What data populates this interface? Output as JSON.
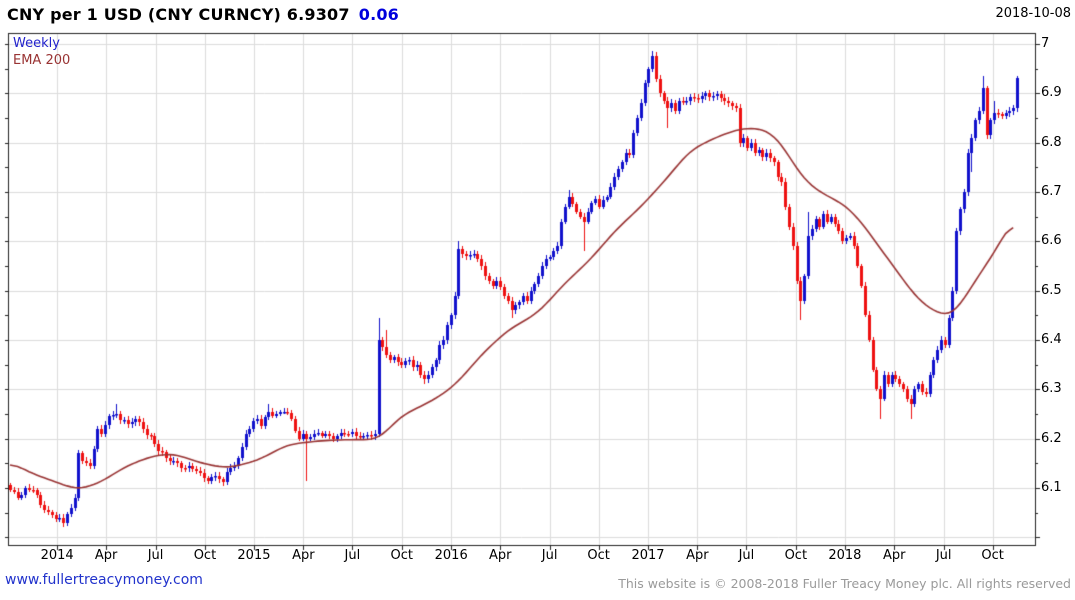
{
  "header": {
    "title": "CNY per 1 USD (CNY CURNCY) 6.9307",
    "change": "0.06",
    "date": "2018-10-08"
  },
  "legend": {
    "timeframe": "Weekly",
    "overlay": "EMA 200"
  },
  "footer": {
    "site": "www.fullertreacymoney.com",
    "copyright": "This website is © 2008-2018 Fuller Treacy Money plc. All rights reserved"
  },
  "chart_data": {
    "type": "candlestick",
    "title": "CNY per 1 USD (CNY CURNCY)",
    "timeframe": "weekly",
    "last_price": 6.9307,
    "change": 0.06,
    "as_of_date": "2018-10-08",
    "overlay": "EMA 200",
    "grid": true,
    "y_axis_side": "right",
    "ylim": [
      5.98,
      7.02
    ],
    "weeks_total": 266,
    "colors": {
      "up_candle": "#1111cc",
      "down_candle": "#ee1111",
      "ema_line": "#993333",
      "grid_line": "#dcdcdc",
      "axis_line": "#222222",
      "accent_blue": "#0000dd",
      "link_blue": "#2233cc",
      "muted_gray": "#9a9a9a"
    },
    "y_ticks": [
      {
        "label": "7",
        "value": 7.0
      },
      {
        "label": "6.9",
        "value": 6.9
      },
      {
        "label": "6.8",
        "value": 6.8
      },
      {
        "label": "6.7",
        "value": 6.7
      },
      {
        "label": "6.6",
        "value": 6.6
      },
      {
        "label": "6.5",
        "value": 6.5
      },
      {
        "label": "6.4",
        "value": 6.4
      },
      {
        "label": "6.3",
        "value": 6.3
      },
      {
        "label": "6.2",
        "value": 6.2
      },
      {
        "label": "6.1",
        "value": 6.1
      }
    ],
    "y_minor_tick_step": 0.05,
    "x_ticks": [
      {
        "label": "2014",
        "w": 12.4
      },
      {
        "label": "Apr",
        "w": 25.3
      },
      {
        "label": "Jul",
        "w": 38.3
      },
      {
        "label": "Oct",
        "w": 51.3
      },
      {
        "label": "2015",
        "w": 64.2
      },
      {
        "label": "Apr",
        "w": 77.2
      },
      {
        "label": "Jul",
        "w": 90.1
      },
      {
        "label": "Oct",
        "w": 103.1
      },
      {
        "label": "2016",
        "w": 116.1
      },
      {
        "label": "Apr",
        "w": 129.0
      },
      {
        "label": "Jul",
        "w": 142.0
      },
      {
        "label": "Oct",
        "w": 154.9
      },
      {
        "label": "2017",
        "w": 167.9
      },
      {
        "label": "Apr",
        "w": 180.9
      },
      {
        "label": "Jul",
        "w": 193.8
      },
      {
        "label": "Oct",
        "w": 206.8
      },
      {
        "label": "2018",
        "w": 219.7
      },
      {
        "label": "Apr",
        "w": 232.7
      },
      {
        "label": "Jul",
        "w": 245.7
      },
      {
        "label": "Oct",
        "w": 258.6
      }
    ],
    "series": {
      "close_keypoints": [
        [
          0,
          6.095
        ],
        [
          2,
          6.08
        ],
        [
          4,
          6.1
        ],
        [
          6,
          6.095
        ],
        [
          8,
          6.065
        ],
        [
          11,
          6.045
        ],
        [
          13,
          6.04
        ],
        [
          14,
          6.03,
          null,
          6.02
        ],
        [
          16,
          6.06
        ],
        [
          17,
          6.08
        ],
        [
          18,
          6.17
        ],
        [
          21,
          6.145
        ],
        [
          23,
          6.22
        ],
        [
          24,
          6.21
        ],
        [
          26,
          6.245
        ],
        [
          28,
          6.25,
          6.27
        ],
        [
          31,
          6.23
        ],
        [
          33,
          6.24
        ],
        [
          35,
          6.22
        ],
        [
          37,
          6.205
        ],
        [
          39,
          6.175
        ],
        [
          41,
          6.16
        ],
        [
          43,
          6.155
        ],
        [
          46,
          6.14
        ],
        [
          49,
          6.135
        ],
        [
          51,
          6.12
        ],
        [
          54,
          6.125
        ],
        [
          56,
          6.113,
          null,
          6.105
        ],
        [
          58,
          6.14
        ],
        [
          60,
          6.16
        ],
        [
          62,
          6.21
        ],
        [
          63,
          6.22
        ],
        [
          65,
          6.24
        ],
        [
          66,
          6.225
        ],
        [
          68,
          6.255,
          6.27
        ],
        [
          70,
          6.25
        ],
        [
          72,
          6.255
        ],
        [
          74,
          6.24
        ],
        [
          76,
          6.2
        ],
        [
          77,
          6.21
        ],
        [
          78,
          6.2,
          null,
          6.115
        ],
        [
          80,
          6.21
        ],
        [
          84,
          6.205
        ],
        [
          88,
          6.21
        ],
        [
          92,
          6.205
        ],
        [
          96,
          6.21
        ],
        [
          97,
          6.4,
          6.445
        ],
        [
          98,
          6.385
        ],
        [
          99,
          6.37,
          6.42
        ],
        [
          100,
          6.36
        ],
        [
          101,
          6.365
        ],
        [
          102,
          6.355
        ],
        [
          103,
          6.35
        ],
        [
          105,
          6.36
        ],
        [
          106,
          6.345
        ],
        [
          107,
          6.35
        ],
        [
          108,
          6.33
        ],
        [
          109,
          6.32,
          null,
          6.31
        ],
        [
          110,
          6.33
        ],
        [
          111,
          6.345
        ],
        [
          112,
          6.36
        ],
        [
          113,
          6.39
        ],
        [
          114,
          6.4
        ],
        [
          115,
          6.43
        ],
        [
          116,
          6.45
        ],
        [
          117,
          6.49
        ],
        [
          118,
          6.585,
          6.6
        ],
        [
          119,
          6.575
        ],
        [
          120,
          6.57
        ],
        [
          122,
          6.575
        ],
        [
          123,
          6.565
        ],
        [
          124,
          6.55
        ],
        [
          126,
          6.52
        ],
        [
          127,
          6.51
        ],
        [
          128,
          6.52
        ],
        [
          130,
          6.49
        ],
        [
          131,
          6.48
        ],
        [
          132,
          6.46,
          null,
          6.445
        ],
        [
          133,
          6.47
        ],
        [
          135,
          6.49
        ],
        [
          136,
          6.48
        ],
        [
          137,
          6.5
        ],
        [
          139,
          6.53
        ],
        [
          140,
          6.55
        ],
        [
          141,
          6.565
        ],
        [
          143,
          6.58
        ],
        [
          144,
          6.59
        ],
        [
          145,
          6.64
        ],
        [
          146,
          6.67
        ],
        [
          147,
          6.69,
          6.705
        ],
        [
          148,
          6.675
        ],
        [
          149,
          6.66
        ],
        [
          150,
          6.65
        ],
        [
          151,
          6.64,
          null,
          6.58
        ],
        [
          152,
          6.66
        ],
        [
          154,
          6.685
        ],
        [
          155,
          6.67
        ],
        [
          157,
          6.69
        ],
        [
          158,
          6.71
        ],
        [
          159,
          6.73
        ],
        [
          161,
          6.76
        ],
        [
          162,
          6.78
        ],
        [
          163,
          6.775
        ],
        [
          164,
          6.82
        ],
        [
          165,
          6.85
        ],
        [
          166,
          6.88
        ],
        [
          167,
          6.92
        ],
        [
          168,
          6.95
        ],
        [
          169,
          6.975,
          6.985
        ],
        [
          170,
          6.93
        ],
        [
          171,
          6.9
        ],
        [
          172,
          6.885
        ],
        [
          173,
          6.87,
          null,
          6.83
        ],
        [
          174,
          6.88
        ],
        [
          175,
          6.865
        ],
        [
          176,
          6.885
        ],
        [
          178,
          6.885
        ],
        [
          180,
          6.89
        ],
        [
          183,
          6.9
        ],
        [
          185,
          6.895
        ],
        [
          187,
          6.89
        ],
        [
          189,
          6.88
        ],
        [
          191,
          6.87
        ],
        [
          192,
          6.8
        ],
        [
          193,
          6.81
        ],
        [
          194,
          6.79
        ],
        [
          195,
          6.8
        ],
        [
          196,
          6.78
        ],
        [
          197,
          6.785
        ],
        [
          198,
          6.77
        ],
        [
          199,
          6.78
        ],
        [
          201,
          6.76
        ],
        [
          202,
          6.73
        ],
        [
          203,
          6.72
        ],
        [
          204,
          6.67
        ],
        [
          205,
          6.63
        ],
        [
          206,
          6.59
        ],
        [
          207,
          6.52
        ],
        [
          208,
          6.48,
          null,
          6.44
        ],
        [
          209,
          6.53
        ],
        [
          210,
          6.61,
          6.66
        ],
        [
          211,
          6.625
        ],
        [
          212,
          6.645
        ],
        [
          213,
          6.63
        ],
        [
          214,
          6.655
        ],
        [
          215,
          6.64
        ],
        [
          216,
          6.65
        ],
        [
          217,
          6.635
        ],
        [
          218,
          6.62
        ],
        [
          219,
          6.6
        ],
        [
          221,
          6.61
        ],
        [
          222,
          6.59
        ],
        [
          223,
          6.55
        ],
        [
          224,
          6.51
        ],
        [
          225,
          6.45
        ],
        [
          226,
          6.4
        ],
        [
          227,
          6.34
        ],
        [
          228,
          6.3
        ],
        [
          229,
          6.28,
          null,
          6.24
        ],
        [
          230,
          6.33
        ],
        [
          231,
          6.31
        ],
        [
          232,
          6.33
        ],
        [
          233,
          6.32
        ],
        [
          234,
          6.31
        ],
        [
          235,
          6.3
        ],
        [
          236,
          6.28
        ],
        [
          237,
          6.27,
          null,
          6.24
        ],
        [
          238,
          6.3
        ],
        [
          239,
          6.31
        ],
        [
          241,
          6.29
        ],
        [
          242,
          6.33
        ],
        [
          243,
          6.36
        ],
        [
          244,
          6.38
        ],
        [
          245,
          6.4
        ],
        [
          246,
          6.39
        ],
        [
          247,
          6.445
        ],
        [
          248,
          6.5
        ],
        [
          249,
          6.62
        ],
        [
          250,
          6.665
        ],
        [
          251,
          6.7
        ],
        [
          252,
          6.78
        ],
        [
          253,
          6.81,
          null,
          6.74
        ],
        [
          254,
          6.845
        ],
        [
          255,
          6.865
        ],
        [
          256,
          6.91,
          6.935
        ],
        [
          257,
          6.815
        ],
        [
          258,
          6.845
        ],
        [
          259,
          6.86,
          6.885
        ],
        [
          261,
          6.855
        ],
        [
          262,
          6.86
        ],
        [
          263,
          6.865
        ],
        [
          264,
          6.87
        ],
        [
          265,
          6.931
        ]
      ],
      "ema_keypoints": [
        [
          0,
          6.153
        ],
        [
          5,
          6.132
        ],
        [
          12,
          6.112
        ],
        [
          18,
          6.096
        ],
        [
          24,
          6.112
        ],
        [
          30,
          6.142
        ],
        [
          37,
          6.164
        ],
        [
          43,
          6.17
        ],
        [
          50,
          6.151
        ],
        [
          57,
          6.14
        ],
        [
          65,
          6.155
        ],
        [
          73,
          6.188
        ],
        [
          82,
          6.196
        ],
        [
          89,
          6.198
        ],
        [
          97,
          6.198
        ],
        [
          103,
          6.247
        ],
        [
          108,
          6.265
        ],
        [
          113,
          6.285
        ],
        [
          118,
          6.315
        ],
        [
          124,
          6.37
        ],
        [
          131,
          6.42
        ],
        [
          139,
          6.455
        ],
        [
          146,
          6.515
        ],
        [
          153,
          6.565
        ],
        [
          159,
          6.62
        ],
        [
          166,
          6.67
        ],
        [
          172,
          6.72
        ],
        [
          179,
          6.785
        ],
        [
          187,
          6.815
        ],
        [
          193,
          6.83
        ],
        [
          199,
          6.827
        ],
        [
          203,
          6.8
        ],
        [
          207,
          6.745
        ],
        [
          211,
          6.71
        ],
        [
          216,
          6.688
        ],
        [
          220,
          6.673
        ],
        [
          225,
          6.63
        ],
        [
          229,
          6.585
        ],
        [
          233,
          6.545
        ],
        [
          237,
          6.5
        ],
        [
          241,
          6.468
        ],
        [
          245,
          6.452
        ],
        [
          248,
          6.448
        ],
        [
          252,
          6.495
        ],
        [
          257,
          6.555
        ],
        [
          261,
          6.6
        ],
        [
          264,
          6.655
        ]
      ]
    }
  }
}
